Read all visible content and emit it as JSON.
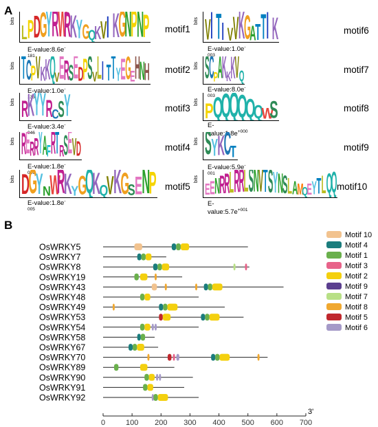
{
  "panel_a": {
    "label": "A",
    "motifs": [
      {
        "name": "motif1",
        "seq": "LPDGYRWRKYGQKVIKGNPNP",
        "evalue_base": "E-value:8.6e",
        "evalue_exp": "-181"
      },
      {
        "name": "motif2",
        "seq": "TCPVKKQVERSEDPSVLITTYEGEHNH",
        "evalue_base": "E-value:1.0e",
        "evalue_exp": "-135"
      },
      {
        "name": "motif3",
        "seq": "RKYYRCSY",
        "evalue_base": "E-value:3.4e",
        "evalue_exp": "-046"
      },
      {
        "name": "motif4",
        "seq": "RERRYAFRTRSEVD",
        "evalue_base": "E-value:1.8e",
        "evalue_exp": "-016"
      },
      {
        "name": "motif5",
        "seq": "DGYNWRKYGQKQVKGSENP",
        "evalue_base": "E-value:1.8e",
        "evalue_exp": "-005"
      },
      {
        "name": "motif6",
        "seq": "VITIVVKGATTIK",
        "evalue_base": "E-value:1.0e",
        "evalue_exp": "-003"
      },
      {
        "name": "motif7",
        "seq": "SCPAKKKVQ",
        "evalue_base": "E-value:8.0e",
        "evalue_exp": "-003"
      },
      {
        "name": "motif8",
        "seq": "PQQQQQQWS",
        "evalue_base": "E-value:1.8e",
        "evalue_exp": "+000"
      },
      {
        "name": "motif9",
        "seq": "SYKCT",
        "evalue_base": "E-value:5.9e",
        "evalue_exp": "-001"
      },
      {
        "name": "motif10",
        "seq": "EENRRLRRLSNVTSYNSLAMQEYTLQQ",
        "evalue_base": "E-value:5.7e",
        "evalue_exp": "+001"
      }
    ]
  },
  "panel_b": {
    "label": "B",
    "end_label": "3'",
    "chart_data": {
      "type": "motif-map",
      "xlim": [
        0,
        700
      ],
      "xticks": [
        0,
        100,
        200,
        300,
        400,
        500,
        600,
        700
      ],
      "legend": [
        {
          "name": "Motif 10",
          "color": "#f2c38f"
        },
        {
          "name": "Motif 4",
          "color": "#1b7d7d"
        },
        {
          "name": "Motif 1",
          "color": "#6ab04c"
        },
        {
          "name": "Motif 3",
          "color": "#e8638a"
        },
        {
          "name": "Motif 2",
          "color": "#f4d00e"
        },
        {
          "name": "Motif 9",
          "color": "#5b3f8f"
        },
        {
          "name": "Motif 7",
          "color": "#b8e086"
        },
        {
          "name": "Motif 8",
          "color": "#f0a830"
        },
        {
          "name": "Motif 5",
          "color": "#c0282d"
        },
        {
          "name": "Motif 6",
          "color": "#a59ac8"
        }
      ],
      "proteins": [
        {
          "name": "OsWRKY5",
          "length": 500,
          "motifs": [
            {
              "m": "Motif 10",
              "s": 108,
              "e": 135
            },
            {
              "m": "Motif 4",
              "s": 237,
              "e": 252
            },
            {
              "m": "Motif 1",
              "s": 252,
              "e": 268
            },
            {
              "m": "Motif 2",
              "s": 268,
              "e": 297
            }
          ]
        },
        {
          "name": "OsWRKY7",
          "length": 218,
          "motifs": [
            {
              "m": "Motif 4",
              "s": 118,
              "e": 132
            },
            {
              "m": "Motif 1",
              "s": 132,
              "e": 147
            },
            {
              "m": "Motif 2",
              "s": 147,
              "e": 167
            }
          ]
        },
        {
          "name": "OsWRKY8",
          "length": 505,
          "motifs": [
            {
              "m": "Motif 4",
              "s": 173,
              "e": 188
            },
            {
              "m": "Motif 1",
              "s": 188,
              "e": 203
            },
            {
              "m": "Motif 2",
              "s": 203,
              "e": 228
            },
            {
              "m": "Motif 7",
              "s": 450,
              "e": 456
            },
            {
              "m": "Motif 3",
              "s": 490,
              "e": 497
            }
          ]
        },
        {
          "name": "OsWRKY19",
          "length": 273,
          "motifs": [
            {
              "m": "Motif 1",
              "s": 108,
              "e": 123
            },
            {
              "m": "Motif 2",
              "s": 128,
              "e": 153
            },
            {
              "m": "Motif 8",
              "s": 178,
              "e": 183
            }
          ]
        },
        {
          "name": "OsWRKY43",
          "length": 623,
          "motifs": [
            {
              "m": "Motif 10",
              "s": 168,
              "e": 186
            },
            {
              "m": "Motif 8",
              "s": 213,
              "e": 218
            },
            {
              "m": "Motif 8",
              "s": 318,
              "e": 323
            },
            {
              "m": "Motif 4",
              "s": 348,
              "e": 362
            },
            {
              "m": "Motif 1",
              "s": 362,
              "e": 377
            },
            {
              "m": "Motif 2",
              "s": 377,
              "e": 412
            }
          ]
        },
        {
          "name": "OsWRKY48",
          "length": 330,
          "motifs": [
            {
              "m": "Motif 1",
              "s": 128,
              "e": 143
            },
            {
              "m": "Motif 2",
              "s": 143,
              "e": 163
            }
          ]
        },
        {
          "name": "OsWRKY49",
          "length": 420,
          "motifs": [
            {
              "m": "Motif 8",
              "s": 33,
              "e": 38
            },
            {
              "m": "Motif 4",
              "s": 193,
              "e": 207
            },
            {
              "m": "Motif 1",
              "s": 207,
              "e": 222
            },
            {
              "m": "Motif 2",
              "s": 222,
              "e": 257
            }
          ]
        },
        {
          "name": "OsWRKY53",
          "length": 485,
          "motifs": [
            {
              "m": "Motif 5",
              "s": 193,
              "e": 206
            },
            {
              "m": "Motif 2",
              "s": 206,
              "e": 233
            },
            {
              "m": "Motif 4",
              "s": 338,
              "e": 352
            },
            {
              "m": "Motif 1",
              "s": 352,
              "e": 367
            },
            {
              "m": "Motif 2",
              "s": 367,
              "e": 402
            }
          ]
        },
        {
          "name": "OsWRKY54",
          "length": 330,
          "motifs": [
            {
              "m": "Motif 1",
              "s": 128,
              "e": 143
            },
            {
              "m": "Motif 2",
              "s": 143,
              "e": 163
            },
            {
              "m": "Motif 6",
              "s": 168,
              "e": 174
            },
            {
              "m": "Motif 6",
              "s": 178,
              "e": 184
            }
          ]
        },
        {
          "name": "OsWRKY58",
          "length": 178,
          "motifs": [
            {
              "m": "Motif 4",
              "s": 118,
              "e": 130
            },
            {
              "m": "Motif 1",
              "s": 130,
              "e": 145
            }
          ]
        },
        {
          "name": "OsWRKY67",
          "length": 190,
          "motifs": [
            {
              "m": "Motif 4",
              "s": 88,
              "e": 102
            },
            {
              "m": "Motif 1",
              "s": 102,
              "e": 117
            },
            {
              "m": "Motif 2",
              "s": 117,
              "e": 142
            }
          ]
        },
        {
          "name": "OsWRKY70",
          "length": 568,
          "motifs": [
            {
              "m": "Motif 8",
              "s": 153,
              "e": 158
            },
            {
              "m": "Motif 5",
              "s": 223,
              "e": 236
            },
            {
              "m": "Motif 3",
              "s": 241,
              "e": 248
            },
            {
              "m": "Motif 6",
              "s": 253,
              "e": 263
            },
            {
              "m": "Motif 4",
              "s": 373,
              "e": 387
            },
            {
              "m": "Motif 1",
              "s": 387,
              "e": 402
            },
            {
              "m": "Motif 2",
              "s": 402,
              "e": 437
            },
            {
              "m": "Motif 8",
              "s": 533,
              "e": 538
            }
          ]
        },
        {
          "name": "OsWRKY89",
          "length": 246,
          "motifs": [
            {
              "m": "Motif 1",
              "s": 38,
              "e": 53
            },
            {
              "m": "Motif 2",
              "s": 128,
              "e": 153
            }
          ]
        },
        {
          "name": "OsWRKY90",
          "length": 310,
          "motifs": [
            {
              "m": "Motif 1",
              "s": 143,
              "e": 158
            },
            {
              "m": "Motif 2",
              "s": 158,
              "e": 178
            },
            {
              "m": "Motif 6",
              "s": 183,
              "e": 188
            },
            {
              "m": "Motif 6",
              "s": 193,
              "e": 198
            }
          ]
        },
        {
          "name": "OsWRKY91",
          "length": 280,
          "motifs": [
            {
              "m": "Motif 1",
              "s": 138,
              "e": 153
            },
            {
              "m": "Motif 2",
              "s": 153,
              "e": 173
            }
          ]
        },
        {
          "name": "OsWRKY92",
          "length": 330,
          "motifs": [
            {
              "m": "Motif 6",
              "s": 168,
              "e": 174
            },
            {
              "m": "Motif 1",
              "s": 174,
              "e": 189
            },
            {
              "m": "Motif 2",
              "s": 189,
              "e": 224
            }
          ]
        }
      ]
    }
  }
}
